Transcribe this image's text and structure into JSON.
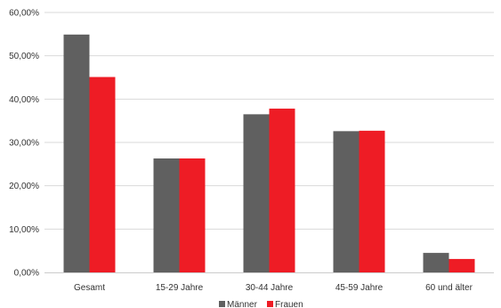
{
  "chart_data": {
    "type": "bar",
    "categories": [
      "Gesamt",
      "15-29 Jahre",
      "30-44 Jahre",
      "45-59 Jahre",
      "60 und älter"
    ],
    "series": [
      {
        "name": "Männer",
        "color": "#606060",
        "values": [
          54.9,
          26.3,
          36.5,
          32.6,
          4.5
        ]
      },
      {
        "name": "Frauen",
        "color": "#ee1c25",
        "values": [
          45.1,
          26.3,
          37.8,
          32.7,
          3.1
        ]
      }
    ],
    "y_ticks": [
      "0,00%",
      "10,00%",
      "20,00%",
      "30,00%",
      "40,00%",
      "50,00%",
      "60,00%"
    ],
    "ylim": [
      0,
      60
    ],
    "grid": true,
    "legend_position": "bottom-center"
  }
}
